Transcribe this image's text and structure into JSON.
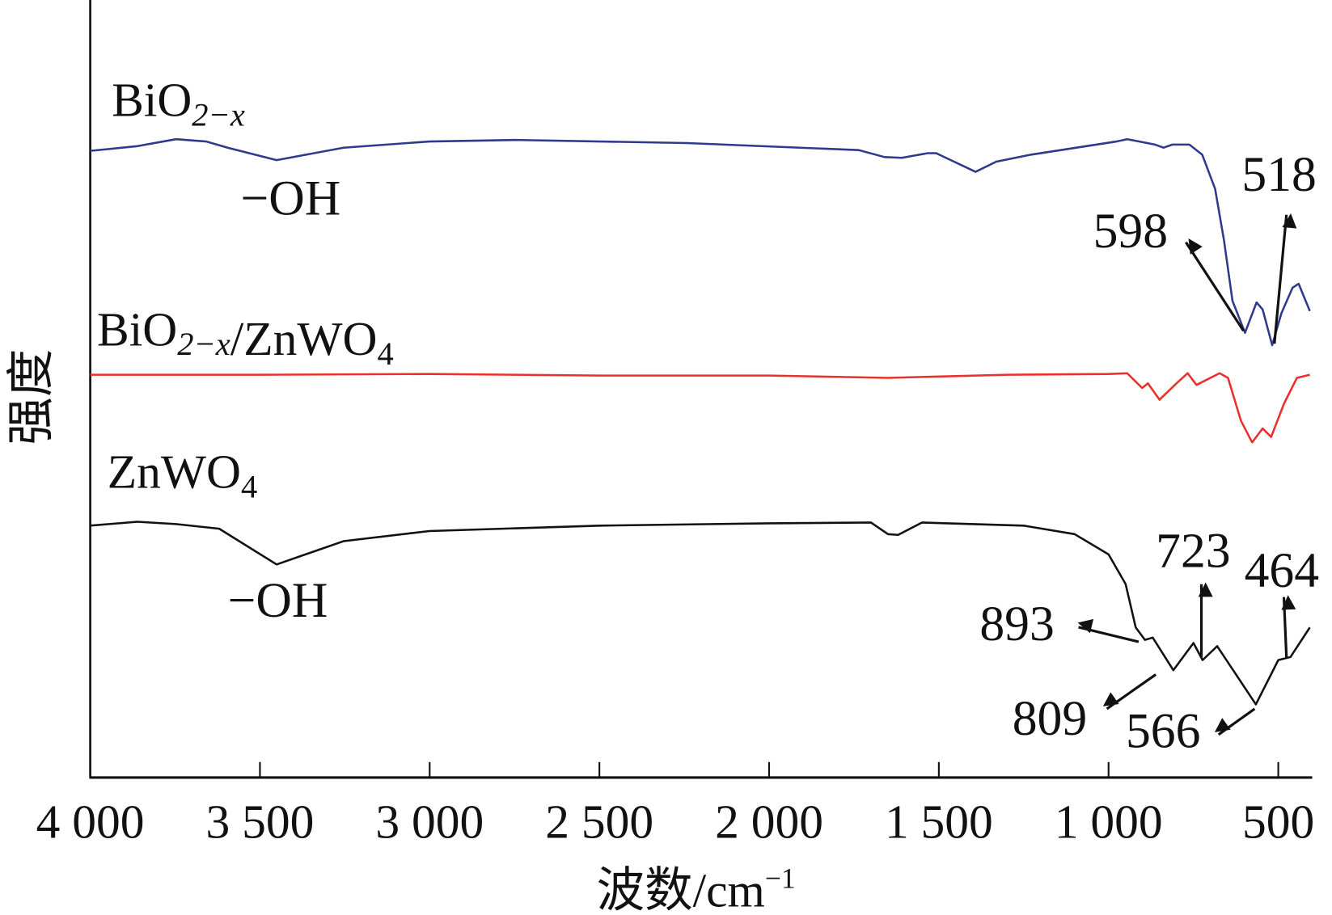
{
  "chart_data": {
    "type": "line",
    "title": "",
    "xlabel": "波数/cm⁻¹",
    "xlabel_parts": [
      [
        "波数/cm",
        ""
      ],
      [
        "−1",
        "sup"
      ]
    ],
    "ylabel": "强度",
    "xlim": [
      4000,
      400
    ],
    "ylim": [
      0,
      100
    ],
    "x_reversed": true,
    "grid": false,
    "xticks": [
      4000,
      3500,
      3000,
      2500,
      2000,
      1500,
      1000,
      500
    ],
    "xtick_labels": [
      "4 000",
      "3 500",
      "3 000",
      "2 500",
      "2 000",
      "1 500",
      "1 000",
      "500"
    ],
    "series": [
      {
        "label_parts": [
          [
            "BiO",
            ""
          ],
          [
            "2−x",
            "sub"
          ]
        ],
        "color": "#2e3a8c",
        "points": [
          [
            4000,
            80.6
          ],
          [
            3861,
            81.2
          ],
          [
            3747,
            82.1
          ],
          [
            3658,
            81.8
          ],
          [
            3595,
            81.0
          ],
          [
            3451,
            79.4
          ],
          [
            3254,
            81.0
          ],
          [
            3001,
            81.8
          ],
          [
            2748,
            82.0
          ],
          [
            2242,
            81.6
          ],
          [
            1736,
            80.7
          ],
          [
            1660,
            79.8
          ],
          [
            1609,
            79.7
          ],
          [
            1533,
            80.3
          ],
          [
            1508,
            80.3
          ],
          [
            1392,
            77.9
          ],
          [
            1331,
            79.2
          ],
          [
            1230,
            80.1
          ],
          [
            977,
            81.8
          ],
          [
            945,
            82.1
          ],
          [
            863,
            81.4
          ],
          [
            838,
            81.0
          ],
          [
            812,
            81.4
          ],
          [
            762,
            81.4
          ],
          [
            724,
            80.1
          ],
          [
            686,
            75.7
          ],
          [
            660,
            69.1
          ],
          [
            635,
            61.3
          ],
          [
            598,
            57.2
          ],
          [
            564,
            61.1
          ],
          [
            546,
            60.2
          ],
          [
            518,
            55.6
          ],
          [
            491,
            59.7
          ],
          [
            458,
            63.0
          ],
          [
            440,
            63.5
          ],
          [
            407,
            60.0
          ]
        ]
      },
      {
        "label_parts": [
          [
            "BiO",
            ""
          ],
          [
            "2−x",
            "sub"
          ],
          [
            "/ZnWO",
            ""
          ],
          [
            "4",
            "sub"
          ]
        ],
        "color": "#e8312a",
        "points": [
          [
            4000,
            51.8
          ],
          [
            3500,
            51.8
          ],
          [
            3000,
            51.9
          ],
          [
            2500,
            51.7
          ],
          [
            2000,
            51.7
          ],
          [
            1650,
            51.4
          ],
          [
            1300,
            51.8
          ],
          [
            1000,
            51.9
          ],
          [
            945,
            52.0
          ],
          [
            901,
            50.1
          ],
          [
            884,
            50.7
          ],
          [
            850,
            48.6
          ],
          [
            800,
            50.7
          ],
          [
            767,
            52.0
          ],
          [
            741,
            50.5
          ],
          [
            673,
            52.0
          ],
          [
            648,
            51.4
          ],
          [
            610,
            45.9
          ],
          [
            577,
            43.1
          ],
          [
            546,
            44.9
          ],
          [
            521,
            43.8
          ],
          [
            483,
            48.1
          ],
          [
            445,
            51.4
          ],
          [
            407,
            51.8
          ]
        ]
      },
      {
        "label_parts": [
          [
            "ZnWO",
            ""
          ],
          [
            "4",
            "sub"
          ]
        ],
        "color": "#111111",
        "points": [
          [
            4000,
            32.4
          ],
          [
            3861,
            32.9
          ],
          [
            3747,
            32.6
          ],
          [
            3620,
            32.0
          ],
          [
            3451,
            27.4
          ],
          [
            3254,
            30.4
          ],
          [
            3001,
            31.7
          ],
          [
            2500,
            32.4
          ],
          [
            2000,
            32.7
          ],
          [
            1700,
            32.8
          ],
          [
            1650,
            31.3
          ],
          [
            1620,
            31.2
          ],
          [
            1550,
            32.8
          ],
          [
            1250,
            32.4
          ],
          [
            1100,
            31.3
          ],
          [
            1000,
            28.7
          ],
          [
            950,
            24.9
          ],
          [
            920,
            19.3
          ],
          [
            893,
            17.7
          ],
          [
            870,
            18.0
          ],
          [
            809,
            13.8
          ],
          [
            750,
            17.3
          ],
          [
            723,
            15.1
          ],
          [
            680,
            16.9
          ],
          [
            566,
            9.4
          ],
          [
            500,
            15.1
          ],
          [
            464,
            15.5
          ],
          [
            407,
            19.3
          ]
        ]
      }
    ],
    "annotations": [
      {
        "text": "−OH",
        "series": 0,
        "x": 3451
      },
      {
        "text": "598",
        "series": 0,
        "x": 598
      },
      {
        "text": "518",
        "series": 0,
        "x": 518
      },
      {
        "text": "−OH",
        "series": 2,
        "x": 3451
      },
      {
        "text": "893",
        "series": 2,
        "x": 893
      },
      {
        "text": "723",
        "series": 2,
        "x": 723
      },
      {
        "text": "464",
        "series": 2,
        "x": 464
      },
      {
        "text": "809",
        "series": 2,
        "x": 809
      },
      {
        "text": "566",
        "series": 2,
        "x": 566
      }
    ]
  }
}
